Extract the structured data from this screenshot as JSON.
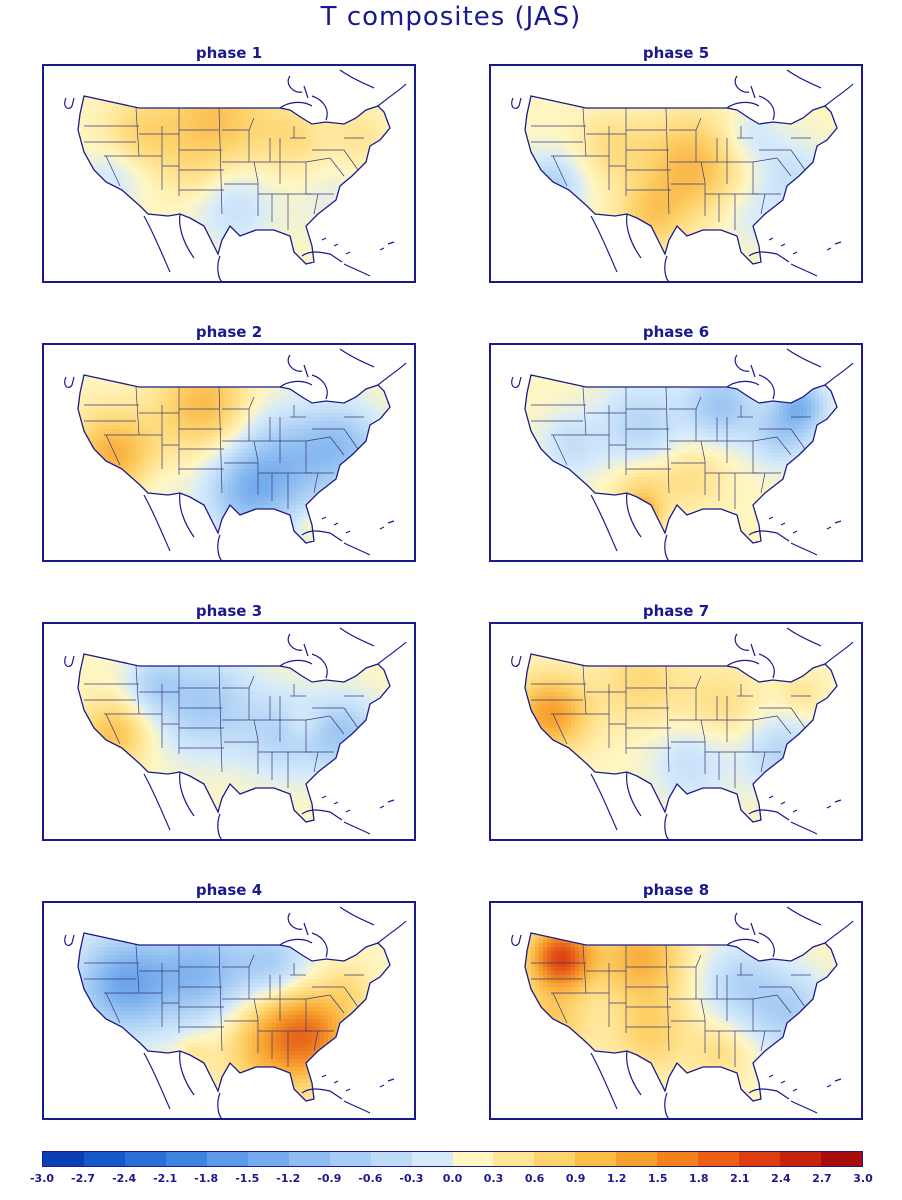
{
  "title": "T composites (JAS)",
  "panels": [
    {
      "label": "phase 1",
      "pattern": "north-warm"
    },
    {
      "label": "phase 5",
      "pattern": "central-warm"
    },
    {
      "label": "phase 2",
      "pattern": "west-warm-east-cool"
    },
    {
      "label": "phase 6",
      "pattern": "cool-with-texas-warm"
    },
    {
      "label": "phase 3",
      "pattern": "cool-with-west-warm"
    },
    {
      "label": "phase 7",
      "pattern": "warm-west-cool-east"
    },
    {
      "label": "phase 4",
      "pattern": "cool-west-warm-southeast"
    },
    {
      "label": "phase 8",
      "pattern": "warm-northwest-cool-east"
    }
  ],
  "colorbar": {
    "labels": [
      "-3.0",
      "-2.7",
      "-2.4",
      "-2.1",
      "-1.8",
      "-1.5",
      "-1.2",
      "-0.9",
      "-0.6",
      "-0.3",
      "0.0",
      "0.3",
      "0.6",
      "0.9",
      "1.2",
      "1.5",
      "1.8",
      "2.1",
      "2.4",
      "2.7",
      "3.0"
    ],
    "colors": [
      "#0a3fb8",
      "#1657c9",
      "#2a6fd6",
      "#3f85e0",
      "#5a9ae8",
      "#74aced",
      "#8dbdf1",
      "#a6cdf4",
      "#bfdcf7",
      "#d6ebfa",
      "#fff6c2",
      "#ffe596",
      "#fdd36b",
      "#fbbd46",
      "#f8a02c",
      "#f4821c",
      "#ec5f14",
      "#dd3d0f",
      "#c7220b",
      "#a80c08"
    ],
    "color_stops": [
      {
        "value": -3.0,
        "color": "#0a3fb8"
      },
      {
        "value": -2.1,
        "color": "#3f85e0"
      },
      {
        "value": -1.2,
        "color": "#8dbdf1"
      },
      {
        "value": -0.6,
        "color": "#bfdcf7"
      },
      {
        "value": -0.3,
        "color": "#d6ebfa"
      },
      {
        "value": 0.0,
        "color": "#fff6c2"
      },
      {
        "value": 0.3,
        "color": "#ffe596"
      },
      {
        "value": 0.6,
        "color": "#fdd36b"
      },
      {
        "value": 1.2,
        "color": "#f8a02c"
      },
      {
        "value": 2.1,
        "color": "#dd3d0f"
      },
      {
        "value": 3.0,
        "color": "#a80c08"
      }
    ]
  },
  "map_colors": {
    "outline": "#1a1a8c",
    "state_lines": "#3a3a7a"
  }
}
